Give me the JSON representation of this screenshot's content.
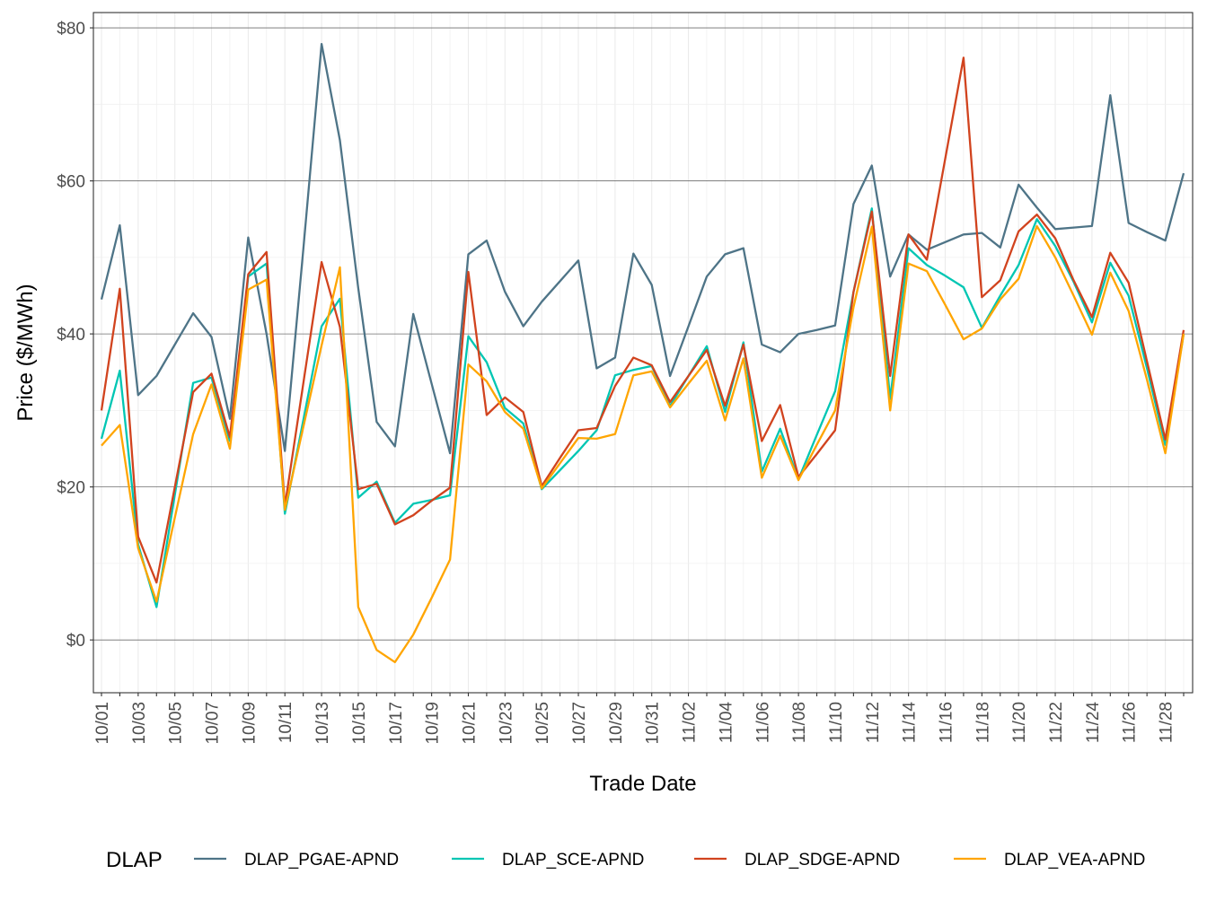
{
  "chart_data": {
    "type": "line",
    "xlabel": "Trade Date",
    "ylabel": "Price ($/MWh)",
    "ylim": [
      -6.9,
      82
    ],
    "yticks": [
      0,
      20,
      40,
      60,
      80
    ],
    "ytick_labels": [
      "$0",
      "$20",
      "$40",
      "$60",
      "$80"
    ],
    "x": [
      "10/01",
      "10/02",
      "10/03",
      "10/04",
      "10/05",
      "10/06",
      "10/07",
      "10/08",
      "10/09",
      "10/10",
      "10/11",
      "10/12",
      "10/13",
      "10/14",
      "10/15",
      "10/16",
      "10/17",
      "10/18",
      "10/19",
      "10/20",
      "10/21",
      "10/22",
      "10/23",
      "10/24",
      "10/25",
      "10/26",
      "10/27",
      "10/28",
      "10/29",
      "10/30",
      "10/31",
      "11/01",
      "11/02",
      "11/03",
      "11/04",
      "11/05",
      "11/06",
      "11/07",
      "11/08",
      "11/09",
      "11/10",
      "11/11",
      "11/12",
      "11/13",
      "11/14",
      "11/15",
      "11/16",
      "11/17",
      "11/18",
      "11/19",
      "11/20",
      "11/21",
      "11/22",
      "11/23",
      "11/24",
      "11/25",
      "11/26",
      "11/27",
      "11/28",
      "11/29"
    ],
    "xtick_labels": [
      "10/01",
      "10/03",
      "10/05",
      "10/07",
      "10/09",
      "10/11",
      "10/13",
      "10/15",
      "10/17",
      "10/19",
      "10/21",
      "10/23",
      "10/25",
      "10/27",
      "10/29",
      "10/31",
      "11/02",
      "11/04",
      "11/06",
      "11/08",
      "11/10",
      "11/12",
      "11/14",
      "11/16",
      "11/18",
      "11/20",
      "11/22",
      "11/24",
      "11/26",
      "11/28"
    ],
    "grid": true,
    "legend": {
      "title": "DLAP",
      "position": "bottom"
    },
    "series": [
      {
        "name": "DLAP_PGAE-APND",
        "color": "#4E7487",
        "values": [
          44.5,
          54.2,
          32,
          34.5,
          38.6,
          42.7,
          39.6,
          28.9,
          52.6,
          40,
          24.7,
          51,
          77.9,
          65.3,
          46,
          28.5,
          25.3,
          42.6,
          33.5,
          24.4,
          50.4,
          52.2,
          45.5,
          41,
          44.2,
          46.9,
          49.6,
          35.5,
          36.9,
          50.5,
          46.4,
          34.5,
          41,
          47.5,
          50.4,
          51.2,
          38.6,
          37.6,
          40,
          40.5,
          41.1,
          57,
          62,
          47.5,
          53,
          51,
          52,
          53,
          53.2,
          51.3,
          59.5,
          56.5,
          53.7,
          53.9,
          54.1,
          71.2,
          54.5,
          53.3,
          52.2,
          61
        ]
      },
      {
        "name": "DLAP_SCE-APND",
        "color": "#00C6B3",
        "values": [
          26.3,
          35.2,
          12.5,
          4.3,
          19,
          33.6,
          34.3,
          26,
          47.5,
          49.2,
          16.5,
          28.7,
          41,
          44.6,
          18.6,
          20.7,
          15.3,
          17.8,
          18.3,
          18.9,
          39.7,
          36.3,
          30.3,
          28.3,
          19.7,
          22.2,
          24.7,
          27.4,
          34.6,
          35.3,
          35.8,
          30.6,
          34.5,
          38.4,
          29.8,
          38.9,
          22,
          27.6,
          21,
          26.8,
          32.5,
          45.5,
          56.4,
          31.5,
          51.2,
          49,
          47.6,
          46.1,
          40.8,
          45,
          49,
          55,
          51.5,
          46.8,
          41.5,
          49.3,
          45,
          35.5,
          25.5,
          40
        ]
      },
      {
        "name": "DLAP_SDGE-APND",
        "color": "#D1431E",
        "values": [
          30,
          45.9,
          13.5,
          7.5,
          20,
          32.4,
          34.8,
          26.5,
          47.8,
          50.7,
          17.5,
          33.5,
          49.4,
          40.9,
          19.7,
          20.4,
          15.1,
          16.3,
          18.2,
          19.9,
          48.1,
          29.4,
          31.7,
          29.8,
          20.1,
          23.8,
          27.4,
          27.7,
          33.2,
          36.9,
          35.9,
          31.1,
          34.5,
          37.9,
          30.6,
          38.6,
          26,
          30.7,
          21.3,
          24.3,
          27.4,
          45.5,
          56,
          34.5,
          53,
          49.7,
          62.9,
          76.1,
          44.8,
          47,
          53.4,
          55.6,
          52.5,
          47,
          42.2,
          50.6,
          46.7,
          36.4,
          26.2,
          40.5
        ]
      },
      {
        "name": "DLAP_VEA-APND",
        "color": "#FFA500",
        "values": [
          25.4,
          28.1,
          12,
          5,
          16,
          26.9,
          33.4,
          25,
          45.8,
          47.1,
          17,
          27.8,
          38.5,
          48.7,
          4.3,
          -1.3,
          -2.9,
          0.7,
          5.5,
          10.5,
          36,
          33.8,
          29.8,
          27.6,
          19.8,
          23.1,
          26.4,
          26.3,
          26.9,
          34.6,
          35.1,
          30.4,
          33.5,
          36.5,
          28.7,
          36.8,
          21.2,
          26.7,
          20.9,
          25.5,
          30,
          43.5,
          54,
          30,
          49.2,
          48.2,
          43.8,
          39.3,
          40.7,
          44.5,
          47.2,
          54.1,
          50,
          45,
          39.9,
          48,
          43,
          34,
          24.4,
          40
        ]
      }
    ]
  }
}
